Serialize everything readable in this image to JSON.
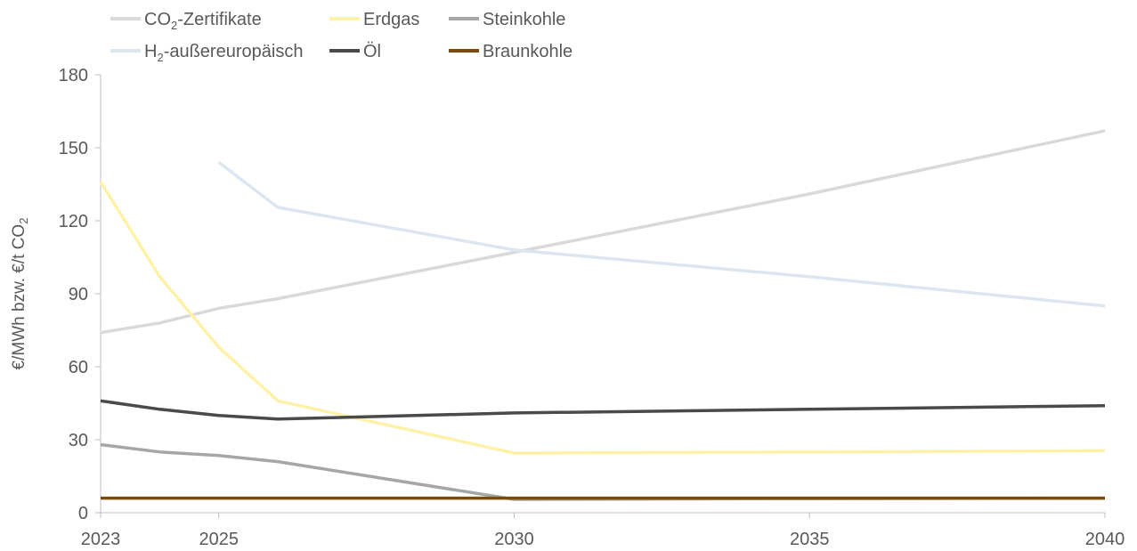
{
  "chart_data": {
    "type": "line",
    "title": "",
    "ylabel": "€/MWh bzw. €/t CO",
    "ylabel_sub": "2",
    "xlabel": "",
    "xlim": [
      2023,
      2040
    ],
    "ylim": [
      0,
      180
    ],
    "x_ticks": [
      "2023",
      "2025",
      "2030",
      "2035",
      "2040"
    ],
    "y_ticks": [
      "0",
      "30",
      "60",
      "90",
      "120",
      "150",
      "180"
    ],
    "legend_position": "top-left",
    "grid": false,
    "series": [
      {
        "name": "CO",
        "name_sub": "2",
        "name_suffix": "-Zertifikate",
        "color": "#d9d9d9",
        "x": [
          2023,
          2024,
          2025,
          2026,
          2030,
          2035,
          2040
        ],
        "y": [
          74,
          78,
          84,
          88,
          107,
          131,
          157
        ]
      },
      {
        "name": "Erdgas",
        "color": "#fff2a8",
        "x": [
          2023,
          2024,
          2025,
          2026,
          2030,
          2035,
          2040
        ],
        "y": [
          136,
          97,
          68,
          46,
          24.5,
          25,
          25.5
        ]
      },
      {
        "name": "Steinkohle",
        "color": "#a6a6a6",
        "x": [
          2023,
          2024,
          2025,
          2026,
          2030,
          2035,
          2040
        ],
        "y": [
          28,
          25,
          23.5,
          21,
          5.5,
          5.8,
          6
        ]
      },
      {
        "name": "H",
        "name_sub": "2",
        "name_suffix": "-außereuropäisch",
        "color": "#dce6f1",
        "x": [
          2025,
          2026,
          2030,
          2035,
          2040
        ],
        "y": [
          144,
          125.5,
          108,
          97,
          85
        ]
      },
      {
        "name": "Öl",
        "color": "#4a4a4a",
        "x": [
          2023,
          2024,
          2025,
          2026,
          2030,
          2035,
          2040
        ],
        "y": [
          46,
          42.5,
          40,
          38.5,
          41,
          42.5,
          44
        ]
      },
      {
        "name": "Braunkohle",
        "color": "#7a4b0a",
        "x": [
          2023,
          2040
        ],
        "y": [
          6,
          6
        ]
      }
    ]
  }
}
